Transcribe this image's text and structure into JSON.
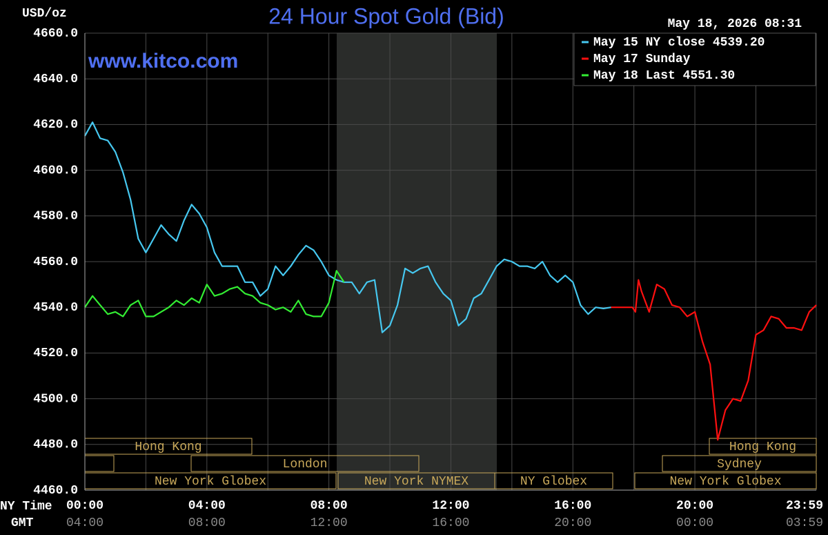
{
  "chart_data": {
    "type": "line",
    "title": "24 Hour Spot Gold (Bid)",
    "y_label": "USD/oz",
    "timestamp": "May 18, 2026 08:31",
    "watermark": "www.kitco.com",
    "x_label": "NY Time",
    "x2_label": "GMT",
    "xlim": [
      0,
      23.98
    ],
    "ylim": [
      4460,
      4660
    ],
    "xticks": [
      {
        "value": 0,
        "label": "00:00"
      },
      {
        "value": 4,
        "label": "04:00"
      },
      {
        "value": 8,
        "label": "08:00"
      },
      {
        "value": 12,
        "label": "12:00"
      },
      {
        "value": 16,
        "label": "16:00"
      },
      {
        "value": 20,
        "label": "20:00"
      },
      {
        "value": 23.98,
        "label": "23:59"
      }
    ],
    "x2ticks": [
      "04:00",
      "08:00",
      "12:00",
      "16:00",
      "20:00",
      "00:00",
      "03:59"
    ],
    "xminorticks": [
      2,
      6,
      10,
      14,
      18,
      22
    ],
    "yticks": [
      {
        "value": 4460,
        "label": "4460.0"
      },
      {
        "value": 4480,
        "label": "4480.0"
      },
      {
        "value": 4500,
        "label": "4500.0"
      },
      {
        "value": 4520,
        "label": "4520.0"
      },
      {
        "value": 4540,
        "label": "4540.0"
      },
      {
        "value": 4560,
        "label": "4560.0"
      },
      {
        "value": 4580,
        "label": "4580.0"
      },
      {
        "value": 4600,
        "label": "4600.0"
      },
      {
        "value": 4620,
        "label": "4620.0"
      },
      {
        "value": 4640,
        "label": "4640.0"
      },
      {
        "value": 4660,
        "label": "4660.0"
      }
    ],
    "grid": true,
    "legend": "top-right",
    "sessions": [
      "Hong Kong",
      "Hong Kong",
      "London",
      "Sydney",
      "New York Globex",
      "New York NYMEX",
      "NY Globex",
      "New York Globex"
    ],
    "series": [
      {
        "name": "May 15 NY close 4539.20",
        "color": "#46c8f0",
        "x": [
          0,
          0.25,
          0.5,
          0.75,
          1,
          1.25,
          1.5,
          1.75,
          2,
          2.25,
          2.5,
          2.75,
          3,
          3.25,
          3.5,
          3.75,
          4,
          4.25,
          4.5,
          4.75,
          5,
          5.25,
          5.5,
          5.75,
          6,
          6.25,
          6.5,
          6.75,
          7,
          7.25,
          7.5,
          7.75,
          8,
          8.25,
          8.5,
          8.75,
          9,
          9.25,
          9.5,
          9.75,
          10,
          10.25,
          10.5,
          10.75,
          11,
          11.25,
          11.5,
          11.75,
          12,
          12.25,
          12.5,
          12.75,
          13,
          13.25,
          13.5,
          13.75,
          14,
          14.25,
          14.5,
          14.75,
          15,
          15.25,
          15.5,
          15.75,
          16,
          16.25,
          16.5,
          16.75,
          17,
          17.25
        ],
        "values": [
          4615,
          4621,
          4614,
          4613,
          4608,
          4599,
          4587,
          4570,
          4564,
          4570,
          4576,
          4572,
          4569,
          4578,
          4585,
          4581,
          4575,
          4564,
          4558,
          4558,
          4558,
          4551,
          4551,
          4545,
          4548,
          4558,
          4554,
          4558,
          4563,
          4567,
          4565,
          4560,
          4554,
          4552,
          4551,
          4551,
          4546,
          4551,
          4552,
          4529,
          4532,
          4541,
          4557,
          4555,
          4557,
          4558,
          4551,
          4546,
          4543,
          4532,
          4535,
          4544,
          4546,
          4552,
          4558,
          4561,
          4560,
          4558,
          4558,
          4557,
          4560,
          4554,
          4551,
          4554,
          4551,
          4541,
          4537,
          4540,
          4539.5,
          4540
        ]
      },
      {
        "name": "May 17 Sunday",
        "color": "#ff1010",
        "x": [
          17.25,
          17.95,
          18.05,
          18.15,
          18.25,
          18.5,
          18.75,
          19,
          19.25,
          19.5,
          19.75,
          20,
          20.25,
          20.5,
          20.75,
          21,
          21.25,
          21.5,
          21.75,
          22,
          22.25,
          22.5,
          22.75,
          23,
          23.25,
          23.5,
          23.75,
          23.98
        ],
        "values": [
          4540,
          4540,
          4538,
          4552,
          4547,
          4538,
          4550,
          4548,
          4541,
          4540,
          4536,
          4538,
          4525,
          4515,
          4482,
          4495,
          4500,
          4499,
          4508,
          4528,
          4530,
          4536,
          4535,
          4531,
          4531,
          4530,
          4538,
          4541
        ]
      },
      {
        "name": "May 18 Last 4551.30",
        "color": "#33ee33",
        "x": [
          0,
          0.25,
          0.5,
          0.75,
          1,
          1.25,
          1.5,
          1.75,
          2,
          2.25,
          2.5,
          2.75,
          3,
          3.25,
          3.5,
          3.75,
          4,
          4.25,
          4.5,
          4.75,
          5,
          5.25,
          5.5,
          5.75,
          6,
          6.25,
          6.5,
          6.75,
          7,
          7.25,
          7.5,
          7.75,
          8,
          8.25,
          8.5
        ],
        "values": [
          4540,
          4545,
          4541,
          4537,
          4538,
          4536,
          4541,
          4543,
          4536,
          4536,
          4538,
          4540,
          4543,
          4541,
          4544,
          4542,
          4550,
          4545,
          4546,
          4548,
          4549,
          4546,
          4545,
          4542,
          4541,
          4539,
          4540,
          4538,
          4543,
          4537,
          4536,
          4536,
          4542,
          4556,
          4551
        ]
      }
    ]
  }
}
